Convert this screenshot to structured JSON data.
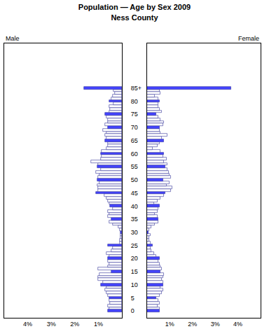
{
  "chart_data": {
    "type": "bar",
    "title": "Population — Age by Sex 2009",
    "subtitle": "Ness County",
    "orientation": "horizontal",
    "grid": false,
    "categories": [
      "0",
      null,
      null,
      null,
      null,
      "5",
      null,
      null,
      null,
      null,
      "10",
      null,
      null,
      null,
      null,
      "15",
      null,
      null,
      null,
      null,
      "20",
      null,
      null,
      null,
      null,
      "25",
      null,
      null,
      null,
      null,
      "30",
      null,
      null,
      null,
      null,
      "35",
      null,
      null,
      null,
      null,
      "40",
      null,
      null,
      null,
      null,
      "45",
      null,
      null,
      null,
      null,
      "50",
      null,
      null,
      null,
      null,
      "55",
      null,
      null,
      null,
      null,
      "60",
      null,
      null,
      null,
      null,
      "65",
      null,
      null,
      null,
      null,
      "70",
      null,
      null,
      null,
      null,
      "75",
      null,
      null,
      null,
      null,
      "80",
      null,
      null,
      null,
      null,
      "85+"
    ],
    "xlim": [
      5,
      0
    ],
    "xticks": [
      {
        "value": 4,
        "label": "4%"
      },
      {
        "value": 3,
        "label": "3%"
      },
      {
        "value": 2,
        "label": "2%"
      },
      {
        "value": 1,
        "label": "1%"
      }
    ],
    "x2lim": [
      0,
      5
    ],
    "x2ticks": [
      {
        "value": 1,
        "label": "1%"
      },
      {
        "value": 2,
        "label": "2%"
      },
      {
        "value": 3,
        "label": "3%"
      },
      {
        "value": 4,
        "label": "4%"
      }
    ],
    "series": [
      {
        "name": "Male",
        "axis": "x",
        "colors": [
          "#4444ff",
          "#ffffff",
          "#ffffff",
          "#ffffff",
          "#ffffff",
          "#4444ff",
          "#ffffff",
          "#ffffff",
          "#ffffff",
          "#ffffff",
          "#4444ff",
          "#ffffff",
          "#ffffff",
          "#ffffff",
          "#ffffff",
          "#4444ff",
          "#ffffff",
          "#ffffff",
          "#ffffff",
          "#ffffff",
          "#4444ff",
          "#ffffff",
          "#ffffff",
          "#ffffff",
          "#ffffff",
          "#4444ff",
          "#ffffff",
          "#ffffff",
          "#ffffff",
          "#ffffff",
          "#4444ff",
          "#ffffff",
          "#ffffff",
          "#ffffff",
          "#ffffff",
          "#4444ff",
          "#ffffff",
          "#ffffff",
          "#ffffff",
          "#ffffff",
          "#4444ff",
          "#ffffff",
          "#ffffff",
          "#ffffff",
          "#ffffff",
          "#4444ff",
          "#ffffff",
          "#ffffff",
          "#ffffff",
          "#ffffff",
          "#4444ff",
          "#ffffff",
          "#ffffff",
          "#ffffff",
          "#ffffff",
          "#4444ff",
          "#ffffff",
          "#ffffff",
          "#ffffff",
          "#ffffff",
          "#4444ff",
          "#ffffff",
          "#ffffff",
          "#ffffff",
          "#ffffff",
          "#4444ff",
          "#ffffff",
          "#ffffff",
          "#ffffff",
          "#ffffff",
          "#4444ff",
          "#ffffff",
          "#ffffff",
          "#ffffff",
          "#ffffff",
          "#4444ff",
          "#ffffff",
          "#ffffff",
          "#ffffff",
          "#ffffff",
          "#4444ff",
          "#ffffff",
          "#ffffff",
          "#ffffff",
          "#ffffff",
          "#4444ff"
        ],
        "values": [
          0.6,
          0.55,
          0.6,
          0.5,
          0.55,
          0.55,
          0.6,
          0.65,
          0.7,
          0.65,
          0.9,
          0.8,
          1.0,
          1.0,
          0.95,
          0.45,
          1.0,
          0.6,
          0.55,
          0.6,
          0.6,
          0.55,
          0.65,
          0.45,
          0.4,
          0.6,
          0.1,
          0.1,
          0.05,
          0.05,
          0.05,
          0.1,
          0.15,
          0.4,
          0.55,
          0.45,
          0.6,
          0.55,
          0.6,
          0.4,
          0.5,
          0.55,
          0.6,
          0.65,
          0.75,
          1.1,
          1.0,
          1.0,
          1.05,
          0.95,
          1.05,
          1.0,
          0.95,
          1.1,
          0.9,
          1.05,
          1.0,
          1.3,
          0.9,
          0.85,
          0.9,
          0.85,
          0.65,
          0.6,
          0.6,
          0.7,
          0.65,
          0.7,
          0.65,
          0.8,
          0.6,
          0.7,
          0.6,
          0.6,
          0.65,
          0.7,
          0.55,
          0.5,
          0.55,
          0.35,
          0.55,
          0.45,
          0.4,
          0.3,
          0.35,
          1.6
        ]
      },
      {
        "name": "Female",
        "axis": "x2",
        "colors": [
          "#4444ff",
          "#ffffff",
          "#ffffff",
          "#ffffff",
          "#ffffff",
          "#4444ff",
          "#ffffff",
          "#ffffff",
          "#ffffff",
          "#ffffff",
          "#4444ff",
          "#ffffff",
          "#ffffff",
          "#ffffff",
          "#ffffff",
          "#4444ff",
          "#ffffff",
          "#ffffff",
          "#ffffff",
          "#ffffff",
          "#4444ff",
          "#ffffff",
          "#ffffff",
          "#ffffff",
          "#ffffff",
          "#4444ff",
          "#ffffff",
          "#ffffff",
          "#ffffff",
          "#ffffff",
          "#4444ff",
          "#ffffff",
          "#ffffff",
          "#ffffff",
          "#ffffff",
          "#4444ff",
          "#ffffff",
          "#ffffff",
          "#ffffff",
          "#ffffff",
          "#4444ff",
          "#ffffff",
          "#ffffff",
          "#ffffff",
          "#ffffff",
          "#4444ff",
          "#ffffff",
          "#ffffff",
          "#ffffff",
          "#ffffff",
          "#4444ff",
          "#ffffff",
          "#ffffff",
          "#ffffff",
          "#ffffff",
          "#4444ff",
          "#ffffff",
          "#ffffff",
          "#ffffff",
          "#ffffff",
          "#4444ff",
          "#ffffff",
          "#ffffff",
          "#ffffff",
          "#ffffff",
          "#4444ff",
          "#ffffff",
          "#ffffff",
          "#ffffff",
          "#ffffff",
          "#4444ff",
          "#ffffff",
          "#ffffff",
          "#ffffff",
          "#ffffff",
          "#4444ff",
          "#ffffff",
          "#ffffff",
          "#ffffff",
          "#ffffff",
          "#4444ff",
          "#ffffff",
          "#ffffff",
          "#ffffff",
          "#ffffff",
          "#4444ff"
        ],
        "values": [
          0.55,
          0.55,
          0.45,
          0.55,
          0.5,
          0.4,
          0.55,
          0.65,
          0.7,
          0.6,
          0.7,
          0.7,
          0.65,
          0.7,
          0.75,
          0.6,
          0.65,
          0.6,
          0.55,
          0.5,
          0.55,
          0.4,
          0.3,
          0.2,
          0.15,
          0.25,
          0.15,
          0.1,
          0.1,
          0.15,
          0.05,
          0.1,
          0.2,
          0.35,
          0.5,
          0.5,
          0.45,
          0.35,
          0.45,
          0.5,
          0.55,
          0.3,
          0.45,
          0.6,
          0.75,
          0.8,
          1.05,
          1.1,
          0.85,
          1.0,
          0.7,
          1.05,
          1.0,
          0.95,
          0.9,
          0.8,
          0.9,
          0.75,
          0.85,
          0.7,
          0.75,
          0.6,
          0.25,
          0.45,
          0.55,
          0.75,
          0.65,
          0.9,
          0.6,
          0.55,
          0.55,
          0.7,
          0.75,
          0.6,
          0.5,
          0.4,
          0.65,
          0.55,
          0.5,
          0.5,
          0.55,
          0.5,
          0.35,
          0.6,
          0.55,
          3.7
        ]
      }
    ]
  }
}
